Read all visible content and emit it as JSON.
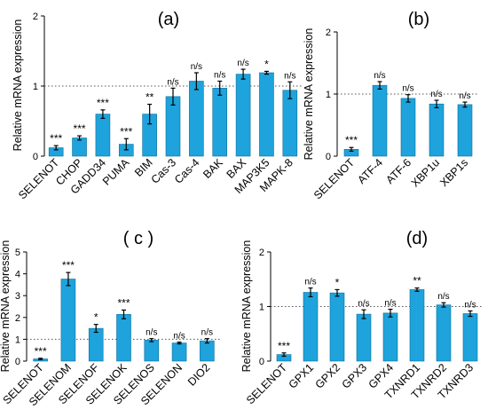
{
  "chart_data": [
    {
      "panel": "(a)",
      "type": "bar",
      "ylabel": "Relative mRNA expression",
      "ylim": [
        0,
        2
      ],
      "yticks": [
        "0",
        "1",
        "2"
      ],
      "reference_line": 1,
      "bar_color": "#1ea3dc",
      "categories": [
        "SELENOT",
        "CHOP",
        "GADD34",
        "PUMA",
        "BIM",
        "Cas-3",
        "Cas-4",
        "BAK",
        "BAX",
        "MAP3K5",
        "MAPK-8"
      ],
      "values": [
        0.12,
        0.26,
        0.6,
        0.17,
        0.6,
        0.85,
        1.07,
        0.97,
        1.17,
        1.19,
        0.94
      ],
      "errors": [
        0.03,
        0.03,
        0.06,
        0.08,
        0.14,
        0.12,
        0.12,
        0.1,
        0.07,
        0.02,
        0.12
      ],
      "significance": [
        "***",
        "***",
        "***",
        "***",
        "**",
        "n/s",
        "n/s",
        "n/s",
        "n/s",
        "*",
        "n/s"
      ]
    },
    {
      "panel": "(b)",
      "type": "bar",
      "ylabel": "Relative mRNA expression",
      "ylim": [
        0,
        2
      ],
      "yticks": [
        "0",
        "1",
        "2"
      ],
      "reference_line": 1,
      "bar_color": "#1ea3dc",
      "categories": [
        "SELENOT",
        "ATF-4",
        "ATF-6",
        "XBP1u",
        "XBP1s"
      ],
      "values": [
        0.11,
        1.14,
        0.93,
        0.84,
        0.83
      ],
      "errors": [
        0.03,
        0.06,
        0.06,
        0.06,
        0.04
      ],
      "significance": [
        "***",
        "n/s",
        "n/s",
        "n/s",
        "n/s"
      ]
    },
    {
      "panel": "( c )",
      "type": "bar",
      "ylabel": "Relative mRNA expression",
      "ylim": [
        0,
        5
      ],
      "yticks": [
        "0",
        "1",
        "2",
        "3",
        "4",
        "5"
      ],
      "reference_line": 1,
      "bar_color": "#1ea3dc",
      "categories": [
        "SELENOT",
        "SELENOM",
        "SELENOF",
        "SELENOK",
        "SELENOS",
        "SELENON",
        "DIO2"
      ],
      "values": [
        0.1,
        3.76,
        1.5,
        2.14,
        0.96,
        0.83,
        0.93
      ],
      "errors": [
        0.03,
        0.3,
        0.18,
        0.2,
        0.07,
        0.04,
        0.1
      ],
      "significance": [
        "***",
        "***",
        "*",
        "***",
        "n/s",
        "n/s",
        "n/s"
      ]
    },
    {
      "panel": "(d)",
      "type": "bar",
      "ylabel": "Relative mRNA expression",
      "ylim": [
        0,
        2
      ],
      "yticks": [
        "0",
        "1",
        "2"
      ],
      "reference_line": 1,
      "bar_color": "#1ea3dc",
      "categories": [
        "SELENOT",
        "GPX1",
        "GPX2",
        "GPX3",
        "GPX4",
        "TXNRD1",
        "TXNRD2",
        "TXNRD3"
      ],
      "values": [
        0.12,
        1.26,
        1.25,
        0.86,
        0.88,
        1.31,
        1.03,
        0.87
      ],
      "errors": [
        0.03,
        0.08,
        0.06,
        0.08,
        0.07,
        0.03,
        0.04,
        0.05
      ],
      "significance": [
        "***",
        "n/s",
        "*",
        "n/s",
        "n/s",
        "**",
        "n/s",
        "n/s"
      ]
    }
  ]
}
